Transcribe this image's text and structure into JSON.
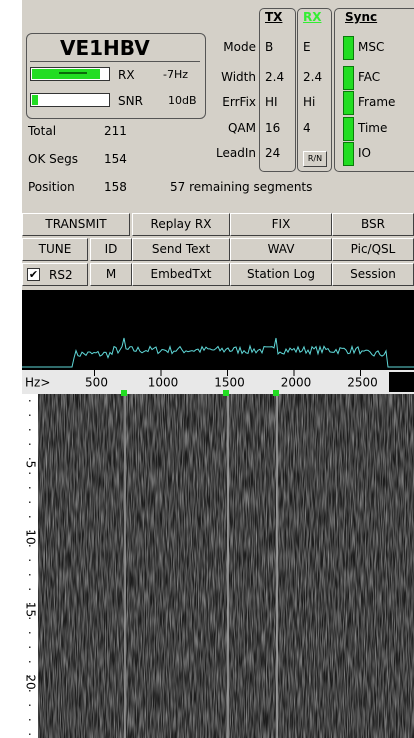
{
  "callsign": "VE1HBV",
  "meters": {
    "rx_label": "RX",
    "rx_value": "-7Hz",
    "snr_label": "SNR",
    "snr_value": "10dB"
  },
  "stats": [
    {
      "label": "Total",
      "value": 211
    },
    {
      "label": "OK Segs",
      "value": 154
    },
    {
      "label": "Position",
      "value": 158
    }
  ],
  "remaining": "57 remaining segments",
  "params": {
    "labels": [
      "Mode",
      "Width",
      "ErrFix",
      "QAM",
      "LeadIn"
    ],
    "tx_header": "TX",
    "tx": [
      "B",
      "2.4",
      "HI",
      "16",
      "24"
    ],
    "rx_header": "RX",
    "rx": [
      "E",
      "2.4",
      "Hi",
      "4"
    ],
    "rn_button": "R/N"
  },
  "sync": {
    "header": "Sync",
    "items": [
      "MSC",
      "FAC",
      "Frame",
      "Time",
      "IO"
    ]
  },
  "buttons": [
    [
      "TRANSMIT",
      "Replay RX",
      "FIX",
      "BSR"
    ],
    [
      "TUNE",
      "ID",
      "Send Text",
      "WAV",
      "Pic/QSL"
    ],
    [
      "RS2",
      "M",
      "EmbedTxt",
      "Station Log",
      "Session"
    ]
  ],
  "spectrum_axis": {
    "unit": "Hz>",
    "ticks": [
      500,
      1000,
      1500,
      2000,
      2500
    ]
  },
  "waterfall_scale": [
    5,
    10,
    15,
    20
  ]
}
